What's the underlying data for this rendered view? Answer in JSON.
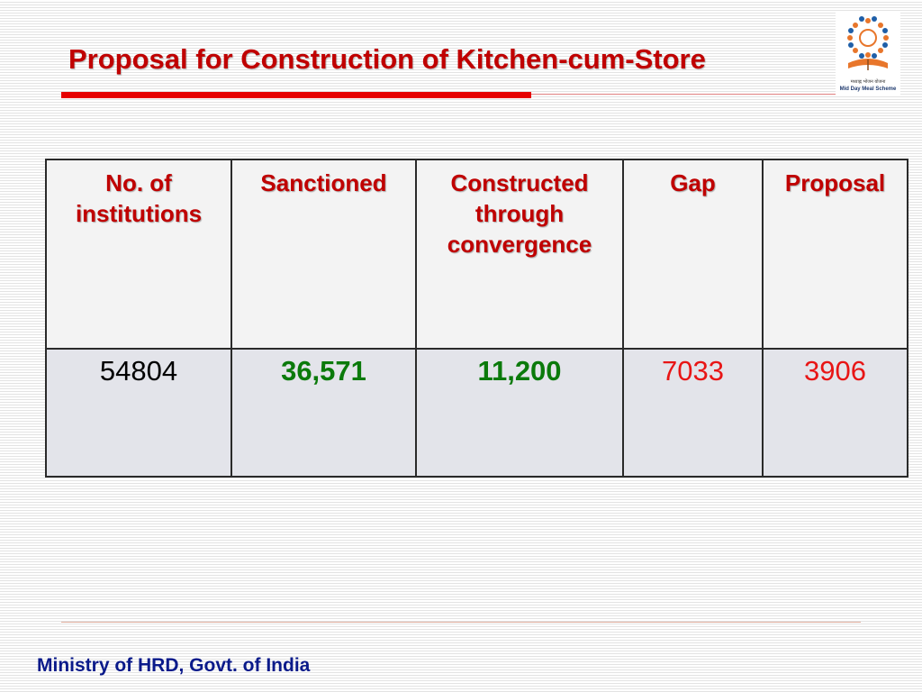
{
  "slide": {
    "title": "Proposal for Construction of Kitchen-cum-Store",
    "footer": "Ministry of HRD, Govt. of India",
    "logo": {
      "hindi_text": "मध्याह्न भोजन योजना",
      "english_text": "Mid Day Meal Scheme"
    }
  },
  "table": {
    "headers": [
      "No. of institutions",
      "Sanctioned",
      "Constructed through convergence",
      "Gap",
      "Proposal"
    ],
    "row": [
      "54804",
      "36,571",
      "11,200",
      "7033",
      "3906"
    ]
  },
  "colors": {
    "title": "#c00000",
    "header_text": "#c00000",
    "green_value": "#0b7a0b",
    "red_value": "#e81515",
    "footer": "#0a1a8a",
    "title_bar": "#e60000"
  }
}
